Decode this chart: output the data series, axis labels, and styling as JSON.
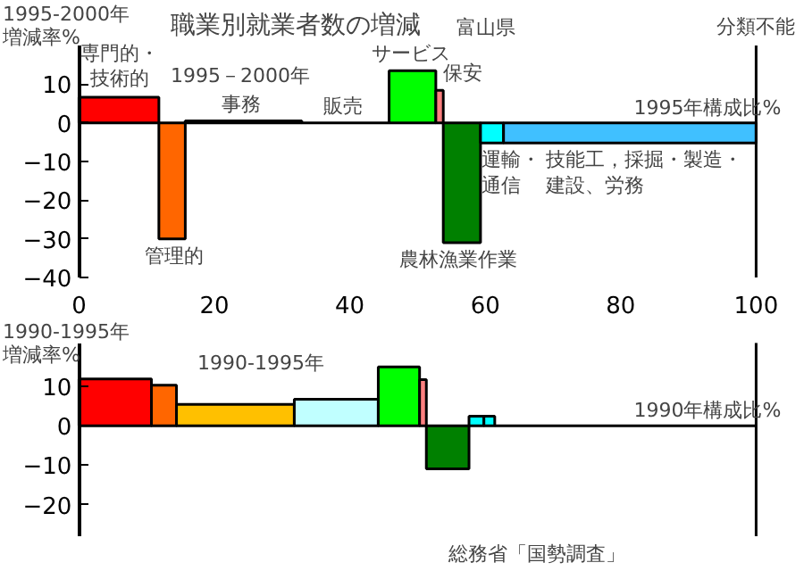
{
  "chart_data": [
    {
      "type": "histogram",
      "title": "職業別就業者数の増減",
      "ylabel": "1995-2000年増減率%",
      "xlabel": "1995年構成比%",
      "bins": [
        0,
        11.8,
        15.7,
        32.9,
        45.8,
        52.7,
        53.8,
        59.3,
        62.7,
        100
      ],
      "values": [
        6.6,
        -30,
        0.5,
        0,
        13.5,
        8.4,
        -31,
        -5.2,
        -5.2
      ],
      "colors": [
        "#ff0000",
        "#ff6600",
        "#000000",
        "#000000",
        "#00ff00",
        "#ff8080",
        "#008000",
        "#00ffff",
        "#40c0ff"
      ],
      "xlim": [
        0,
        100
      ],
      "xticks": [
        0,
        20,
        40,
        60,
        80,
        100
      ],
      "ylim": [
        -40,
        20
      ],
      "yticks": [
        -40,
        -30,
        -20,
        -10,
        0,
        10
      ],
      "ref_lines": [
        {
          "axis": "x",
          "value": 100,
          "label": "分類不能"
        }
      ],
      "annotations": [
        "1995－2000年",
        "富山県",
        {
          "text": "専門的・技術的",
          "x": 6,
          "y": 7
        },
        {
          "text": "管理的",
          "x": 14,
          "y": -30
        },
        {
          "text": "事務",
          "x": 24,
          "y": 0.5
        },
        {
          "text": "販売",
          "x": 39,
          "y": 0
        },
        {
          "text": "サービス",
          "x": 49,
          "y": 13.5
        },
        {
          "text": "保安",
          "x": 53.8,
          "y": 8.4
        },
        {
          "text": "農林漁業作業",
          "x": 56,
          "y": -31
        },
        {
          "text": "運輸・通信",
          "x": 59.5,
          "y": -5.2
        },
        {
          "text": "技能工，採掘・製造・建設、労務",
          "x": 69,
          "y": -5.2
        }
      ],
      "grid": false
    },
    {
      "type": "histogram",
      "ylabel": "1990-1995年増減率%",
      "xlabel": "1990年構成比%",
      "bins": [
        0,
        10.7,
        14.4,
        31.8,
        44.2,
        50.3,
        51.3,
        57.6,
        59.8,
        61.4,
        100
      ],
      "values": [
        11.9,
        10.3,
        5.4,
        6.7,
        14.9,
        11.7,
        -10.9,
        2.4,
        2.4,
        0
      ],
      "colors": [
        "#ff0000",
        "#ff6600",
        "#ffc000",
        "#c0ffff",
        "#00ff00",
        "#ff8080",
        "#008000",
        "#00ffff",
        "#00ffff",
        "#000000"
      ],
      "xlim": [
        0,
        100
      ],
      "xticks": [
        0,
        20,
        40,
        60,
        80,
        100
      ],
      "ylim": [
        -28,
        21
      ],
      "yticks": [
        -20,
        -10,
        0,
        10
      ],
      "tick_labels": "y",
      "ref_lines": [
        {
          "axis": "x",
          "value": 100
        }
      ],
      "annotations": [
        "1990-1995年",
        "総務省「国勢調査」"
      ],
      "grid": false
    }
  ]
}
